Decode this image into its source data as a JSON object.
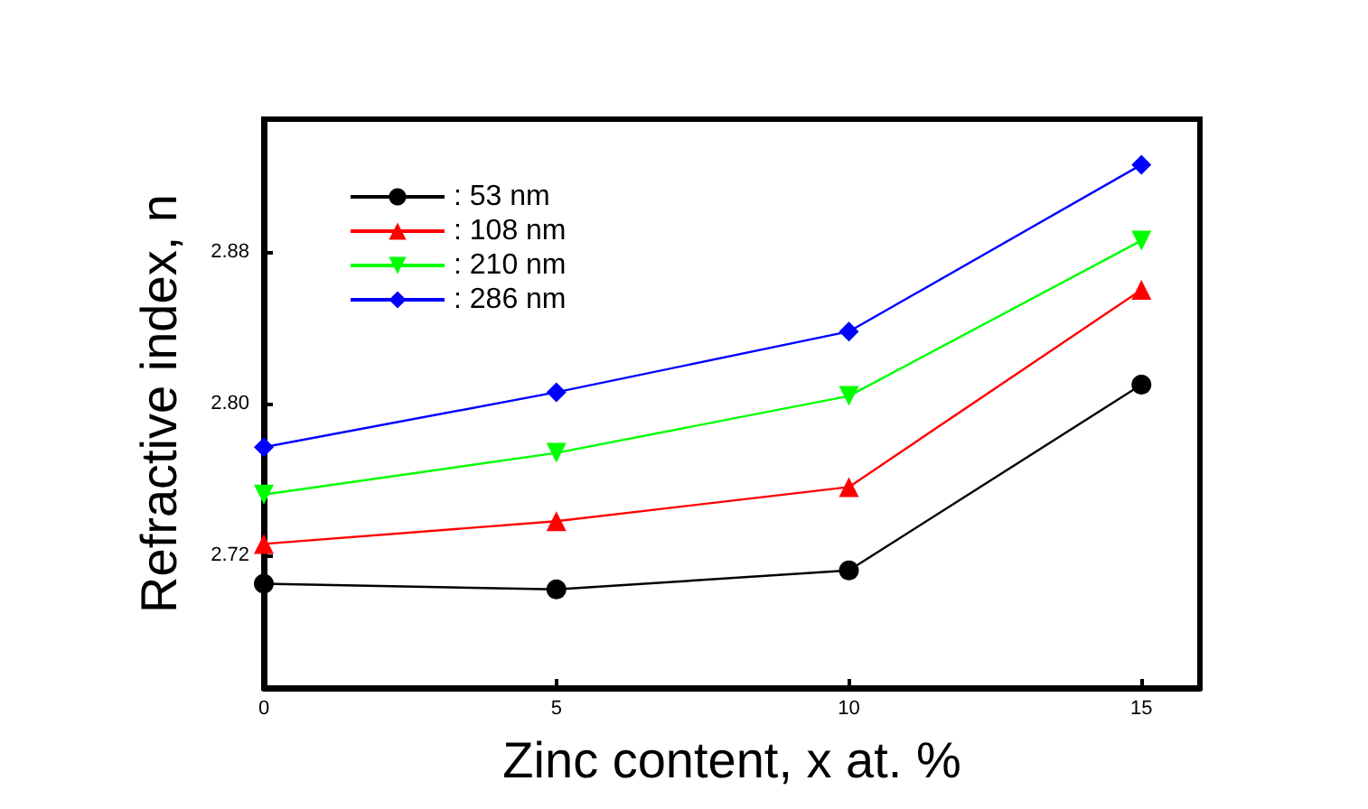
{
  "chart_data": {
    "type": "line",
    "xlabel": "Zinc content, x at. %",
    "ylabel": "Refractive index, n",
    "x": [
      0,
      5,
      10,
      15
    ],
    "series": [
      {
        "name": ": 53 nm",
        "color": "#000000",
        "marker": "circle",
        "values": [
          2.705,
          2.702,
          2.712,
          2.81
        ]
      },
      {
        "name": ": 108 nm",
        "color": "#ff0000",
        "marker": "triangle",
        "values": [
          2.726,
          2.738,
          2.756,
          2.86
        ]
      },
      {
        "name": ": 210 nm",
        "color": "#00ff00",
        "marker": "triangle-down",
        "values": [
          2.752,
          2.774,
          2.804,
          2.886
        ]
      },
      {
        "name": ": 286 nm",
        "color": "#0000ff",
        "marker": "diamond",
        "values": [
          2.777,
          2.806,
          2.838,
          2.926
        ]
      }
    ],
    "xlim": [
      0,
      16
    ],
    "xticks": [
      0,
      5,
      10,
      15
    ],
    "ylim": [
      2.65,
      2.95
    ],
    "yticks": [
      {
        "value": 2.72,
        "label": "2.72"
      },
      {
        "value": 2.8,
        "label": "2.80"
      },
      {
        "value": 2.88,
        "label": "2.88"
      }
    ],
    "grid": false,
    "legend": "top left"
  }
}
